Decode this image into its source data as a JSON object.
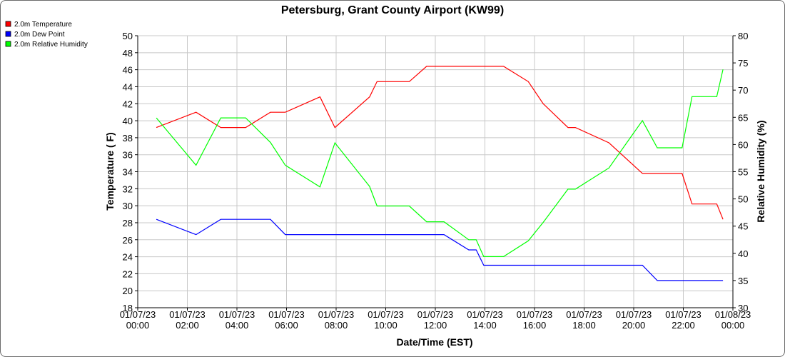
{
  "chart_data": {
    "type": "line",
    "title": "Petersburg, Grant County Airport (KW99)",
    "xlabel": "Date/Time (EST)",
    "ylabel_left": "Temperature ( F)",
    "ylabel_right": "Relative Humidity (%)",
    "ylim_left": [
      18,
      50
    ],
    "ylim_right": [
      30,
      80
    ],
    "xlim_hours": [
      0,
      24
    ],
    "grid": true,
    "legend_position": "top-left",
    "x_ticks": [
      {
        "hour": 0,
        "date": "01/07/23",
        "time": "00:00"
      },
      {
        "hour": 2,
        "date": "01/07/23",
        "time": "02:00"
      },
      {
        "hour": 4,
        "date": "01/07/23",
        "time": "04:00"
      },
      {
        "hour": 6,
        "date": "01/07/23",
        "time": "06:00"
      },
      {
        "hour": 8,
        "date": "01/07/23",
        "time": "08:00"
      },
      {
        "hour": 10,
        "date": "01/07/23",
        "time": "10:00"
      },
      {
        "hour": 12,
        "date": "01/07/23",
        "time": "12:00"
      },
      {
        "hour": 14,
        "date": "01/07/23",
        "time": "14:00"
      },
      {
        "hour": 16,
        "date": "01/07/23",
        "time": "16:00"
      },
      {
        "hour": 18,
        "date": "01/07/23",
        "time": "18:00"
      },
      {
        "hour": 20,
        "date": "01/07/23",
        "time": "20:00"
      },
      {
        "hour": 22,
        "date": "01/07/23",
        "time": "22:00"
      },
      {
        "hour": 24,
        "date": "01/08/23",
        "time": "00:00"
      }
    ],
    "y_ticks_left": [
      18,
      20,
      22,
      24,
      26,
      28,
      30,
      32,
      34,
      36,
      38,
      40,
      42,
      44,
      46,
      48,
      50
    ],
    "y_ticks_right": [
      30,
      35,
      40,
      45,
      50,
      55,
      60,
      65,
      70,
      75,
      80
    ],
    "series": [
      {
        "name": "2.0m Temperature",
        "color": "#ff0000",
        "axis": "left",
        "x": [
          0.75,
          2.35,
          3.35,
          4.35,
          5.35,
          5.95,
          7.35,
          7.95,
          9.35,
          9.65,
          10.35,
          10.95,
          11.65,
          12.35,
          13.35,
          14.35,
          14.75,
          15.75,
          16.35,
          17.35,
          17.65,
          19.0,
          20.35,
          20.95,
          21.35,
          21.95,
          22.35,
          22.95,
          23.35,
          23.6
        ],
        "values": [
          39.2,
          41.0,
          39.2,
          39.2,
          41.0,
          41.0,
          42.8,
          39.2,
          42.8,
          44.6,
          44.6,
          44.6,
          46.4,
          46.4,
          46.4,
          46.4,
          46.4,
          44.6,
          42.0,
          39.2,
          39.2,
          37.4,
          33.8,
          33.8,
          33.8,
          33.8,
          30.2,
          30.2,
          30.2,
          28.4
        ]
      },
      {
        "name": "2.0m Dew Point",
        "color": "#0000ff",
        "axis": "left",
        "x": [
          0.75,
          2.35,
          3.35,
          4.35,
          5.35,
          5.95,
          7.35,
          9.35,
          10.95,
          12.35,
          13.35,
          13.65,
          13.95,
          14.35,
          16.35,
          18.35,
          20.35,
          20.95,
          21.35,
          22.35,
          23.6
        ],
        "values": [
          28.4,
          26.6,
          28.4,
          28.4,
          28.4,
          26.6,
          26.6,
          26.6,
          26.6,
          26.6,
          24.8,
          24.8,
          23.0,
          23.0,
          23.0,
          23.0,
          23.0,
          21.2,
          21.2,
          21.2,
          21.2
        ]
      },
      {
        "name": "2.0m Relative Humidity",
        "color": "#00ff00",
        "axis": "right",
        "x": [
          0.75,
          2.35,
          3.35,
          4.35,
          5.35,
          5.95,
          7.35,
          7.95,
          9.35,
          9.65,
          10.35,
          10.95,
          11.65,
          12.35,
          13.35,
          13.65,
          13.95,
          14.35,
          14.75,
          15.75,
          16.35,
          17.35,
          17.65,
          19.0,
          20.35,
          20.95,
          21.35,
          21.95,
          22.35,
          22.95,
          23.35,
          23.6
        ],
        "values": [
          64.9,
          56.2,
          64.9,
          64.9,
          60.4,
          56.2,
          52.2,
          60.3,
          52.3,
          48.7,
          48.7,
          48.7,
          45.8,
          45.8,
          42.5,
          42.5,
          39.4,
          39.4,
          39.4,
          42.3,
          45.7,
          51.8,
          51.8,
          55.7,
          64.4,
          59.4,
          59.4,
          59.4,
          68.8,
          68.8,
          68.8,
          73.8
        ]
      }
    ]
  }
}
